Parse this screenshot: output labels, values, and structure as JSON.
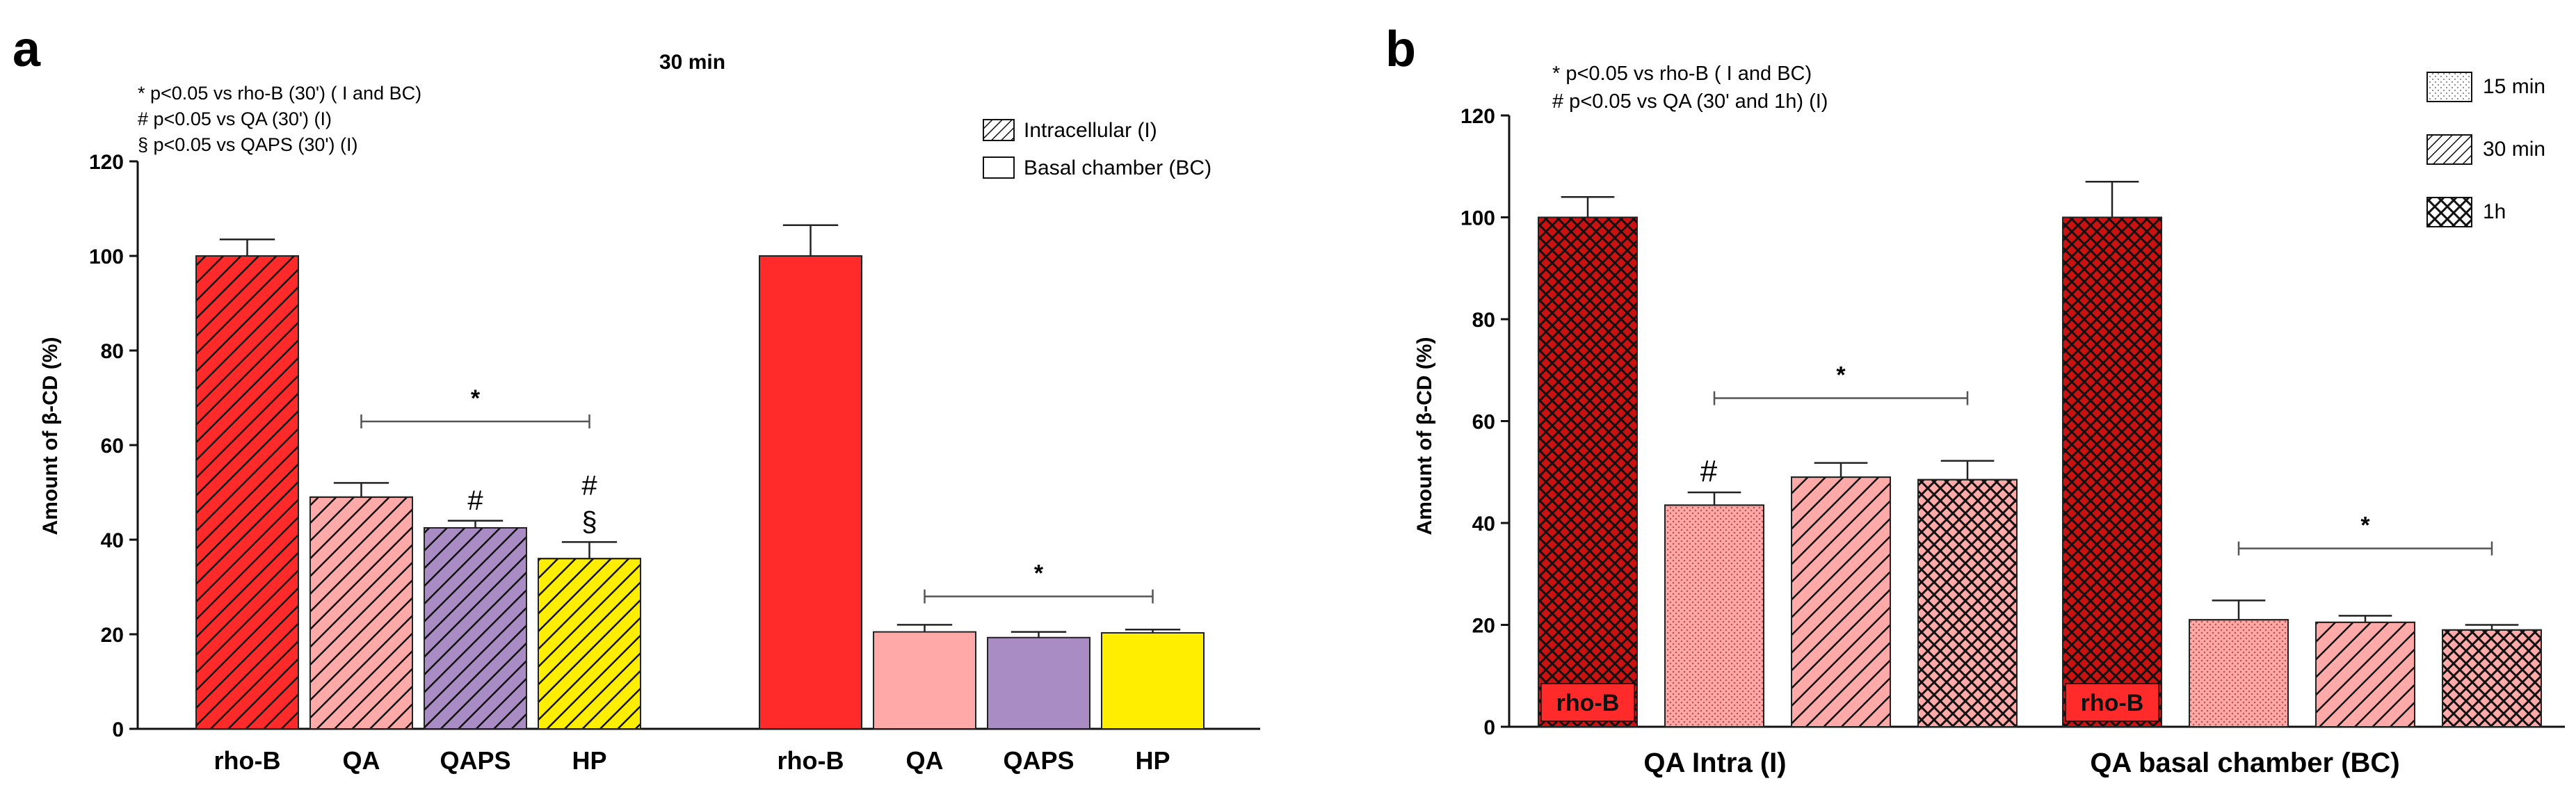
{
  "colors": {
    "red": "#ff2a2a",
    "pink": "#ffaaa8",
    "purple": "#a98cc4",
    "yellow": "#ffee00",
    "dark_red": "#cc1111",
    "hatch_line": "#111111"
  },
  "chart_data": [
    {
      "type": "bar",
      "panel_label": "a",
      "title": "30 min",
      "ylabel": "Amount of β-CD (%)",
      "xlabel": "",
      "ylim": [
        0,
        120
      ],
      "yticks": [
        0,
        20,
        40,
        60,
        80,
        100,
        120
      ],
      "grid": false,
      "notes": [
        "* p<0.05 vs  rho-B  (30') ( I and BC)",
        "# p<0.05 vs QA (30') (I)",
        "§ p<0.05 vs QAPS (30') (I)"
      ],
      "legend": [
        {
          "label": "Intracellular (I)",
          "pattern": "diag"
        },
        {
          "label": "Basal chamber (BC)",
          "pattern": "solid"
        }
      ],
      "legend_position": "top-right",
      "groups": [
        {
          "name": "Intracellular (I)",
          "pattern": "diag",
          "categories": [
            "rho-B",
            "QA",
            "QAPS",
            "HP"
          ],
          "values": [
            100,
            49,
            42.5,
            36
          ],
          "errors": [
            3.5,
            3,
            1.5,
            3.5
          ],
          "colors": [
            "#ff2a2a",
            "#ffaaa8",
            "#a98cc4",
            "#ffee00"
          ],
          "marks": [
            "",
            "",
            "#",
            "#\n§"
          ],
          "bracket": {
            "label": "*",
            "y": 65,
            "from": 1,
            "to": 3
          }
        },
        {
          "name": "Basal chamber (BC)",
          "pattern": "solid",
          "categories": [
            "rho-B",
            "QA",
            "QAPS",
            "HP"
          ],
          "values": [
            100,
            20.5,
            19.3,
            20.3
          ],
          "errors": [
            6.5,
            1.5,
            1.2,
            0.7
          ],
          "colors": [
            "#ff2a2a",
            "#ffaaa8",
            "#a98cc4",
            "#ffee00"
          ],
          "marks": [
            "",
            "",
            "",
            ""
          ],
          "bracket": {
            "label": "*",
            "y": 28,
            "from": 1,
            "to": 3
          }
        }
      ]
    },
    {
      "type": "bar",
      "panel_label": "b",
      "title": "",
      "ylabel": "Amount of β-CD (%)",
      "ylim": [
        0,
        120
      ],
      "yticks": [
        0,
        20,
        40,
        60,
        80,
        100,
        120
      ],
      "grid": false,
      "notes": [
        "* p<0.05 vs  rho-B ( I and BC)",
        "# p<0.05 vs QA (30' and 1h) (I)"
      ],
      "legend": [
        {
          "label": "15 min",
          "pattern": "dots"
        },
        {
          "label": "30 min",
          "pattern": "diag"
        },
        {
          "label": "1h",
          "pattern": "cross"
        }
      ],
      "legend_position": "top-right",
      "groups": [
        {
          "name": "QA Intra (I)",
          "values": [
            100,
            43.5,
            49,
            48.5
          ],
          "errors": [
            4,
            2.5,
            2.8,
            3.7
          ],
          "patterns": [
            "cross",
            "dots",
            "diag",
            "cross"
          ],
          "colors": [
            "#cc1111",
            "#ffaaa8",
            "#ffaaa8",
            "#ffaaa8"
          ],
          "bar_labels": [
            "rho-B",
            "",
            "",
            ""
          ],
          "marks": [
            "",
            "#",
            "",
            ""
          ],
          "bracket": {
            "label": "*",
            "y": 64.5,
            "from": 1,
            "to": 3
          }
        },
        {
          "name": "QA basal chamber (BC)",
          "values": [
            100,
            21,
            20.5,
            19
          ],
          "errors": [
            7,
            3.8,
            1.3,
            1.0
          ],
          "patterns": [
            "cross",
            "dots",
            "diag",
            "cross"
          ],
          "colors": [
            "#cc1111",
            "#ffaaa8",
            "#ffaaa8",
            "#ffaaa8"
          ],
          "bar_labels": [
            "rho-B",
            "",
            "",
            ""
          ],
          "marks": [
            "",
            "",
            "",
            ""
          ],
          "bracket": {
            "label": "*",
            "y": 35,
            "from": 1,
            "to": 3
          }
        }
      ]
    }
  ]
}
